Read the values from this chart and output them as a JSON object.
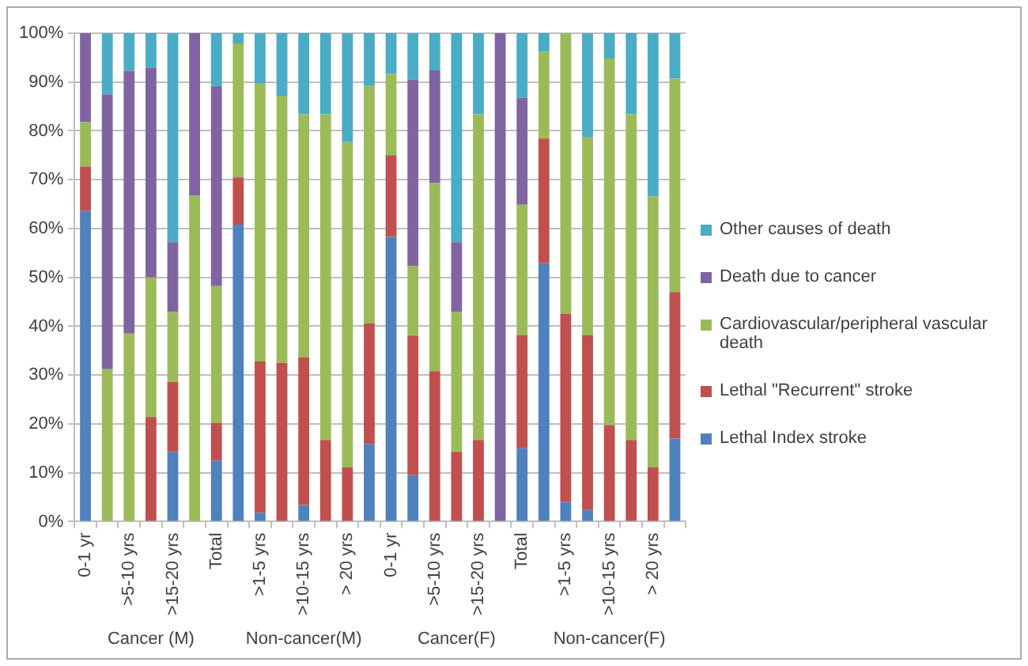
{
  "chart_data": {
    "type": "bar",
    "stacked": true,
    "categories": [
      "0-1 yr",
      null,
      ">5-10 yrs",
      null,
      ">15-20 yrs",
      null,
      "Total",
      null,
      ">1-5 yrs",
      null,
      ">10-15 yrs",
      null,
      "> 20 yrs",
      null,
      "0-1 yr",
      null,
      ">5-10 yrs",
      null,
      ">15-20 yrs",
      null,
      "Total",
      null,
      ">1-5 yrs",
      null,
      ">10-15 yrs",
      null,
      "> 20 yrs",
      null
    ],
    "series": [
      {
        "name": "Lethal Index stroke",
        "color": "#4f81bd",
        "values": [
          63.6,
          0,
          0,
          0,
          14.3,
          0,
          12.5,
          60.8,
          1.8,
          0,
          3.4,
          0,
          0,
          15.9,
          58.3,
          9.5,
          0,
          0,
          0,
          0,
          15,
          52.9,
          4,
          2.4,
          0,
          0,
          0,
          17
        ]
      },
      {
        "name": "Lethal \"Recurrent\" stroke",
        "color": "#c0504d",
        "values": [
          9.1,
          0,
          0,
          21.4,
          14.3,
          0,
          7.7,
          9.7,
          31,
          32.5,
          30.2,
          16.7,
          11.1,
          24.7,
          16.7,
          28.6,
          30.8,
          14.3,
          16.7,
          0,
          23.2,
          25.5,
          38.6,
          35.8,
          19.8,
          16.7,
          11.1,
          30
        ]
      },
      {
        "name": "Cardiovascular/peripheral vascular death",
        "color": "#9bbb59",
        "values": [
          9.1,
          31.2,
          38.5,
          28.6,
          14.3,
          66.7,
          28,
          27.4,
          57,
          54.7,
          49.8,
          66.7,
          66.6,
          48.6,
          16.7,
          14.3,
          38.5,
          28.6,
          66.7,
          0,
          26.7,
          17.8,
          57.4,
          40.6,
          75,
          66.7,
          55.5,
          43.7
        ]
      },
      {
        "name": "Death due to cancer",
        "color": "#8064a2",
        "values": [
          18.2,
          56.3,
          53.8,
          42.9,
          14.3,
          33.3,
          41,
          0,
          0,
          0,
          0,
          0,
          0,
          0,
          0,
          38.1,
          23.1,
          14.3,
          0,
          100,
          21.9,
          0,
          0,
          0,
          0,
          0,
          0,
          0
        ]
      },
      {
        "name": "Other causes of death",
        "color": "#4bacc6",
        "values": [
          0,
          12.5,
          7.7,
          7.1,
          42.9,
          0,
          10.8,
          2.1,
          10.2,
          12.8,
          16.6,
          16.6,
          22.3,
          10.8,
          8.3,
          9.5,
          7.7,
          42.9,
          16.7,
          0,
          13.2,
          3.8,
          0,
          21.2,
          5.2,
          16.6,
          33.4,
          9.3
        ]
      }
    ],
    "ylim": [
      0,
      100
    ],
    "yticks": [
      {
        "value": 0,
        "label": "0%"
      },
      {
        "value": 10,
        "label": "10%"
      },
      {
        "value": 20,
        "label": "20%"
      },
      {
        "value": 30,
        "label": "30%"
      },
      {
        "value": 40,
        "label": "40%"
      },
      {
        "value": 50,
        "label": "50%"
      },
      {
        "value": 60,
        "label": "60%"
      },
      {
        "value": 70,
        "label": "70%"
      },
      {
        "value": 80,
        "label": "80%"
      },
      {
        "value": 90,
        "label": "90%"
      },
      {
        "value": 100,
        "label": "100%"
      }
    ],
    "grid": "y",
    "legend": "right",
    "annotations": [
      "Cancer (M)",
      "Non-cancer(M)",
      "Cancer(F)",
      "Non-cancer(F)"
    ]
  }
}
